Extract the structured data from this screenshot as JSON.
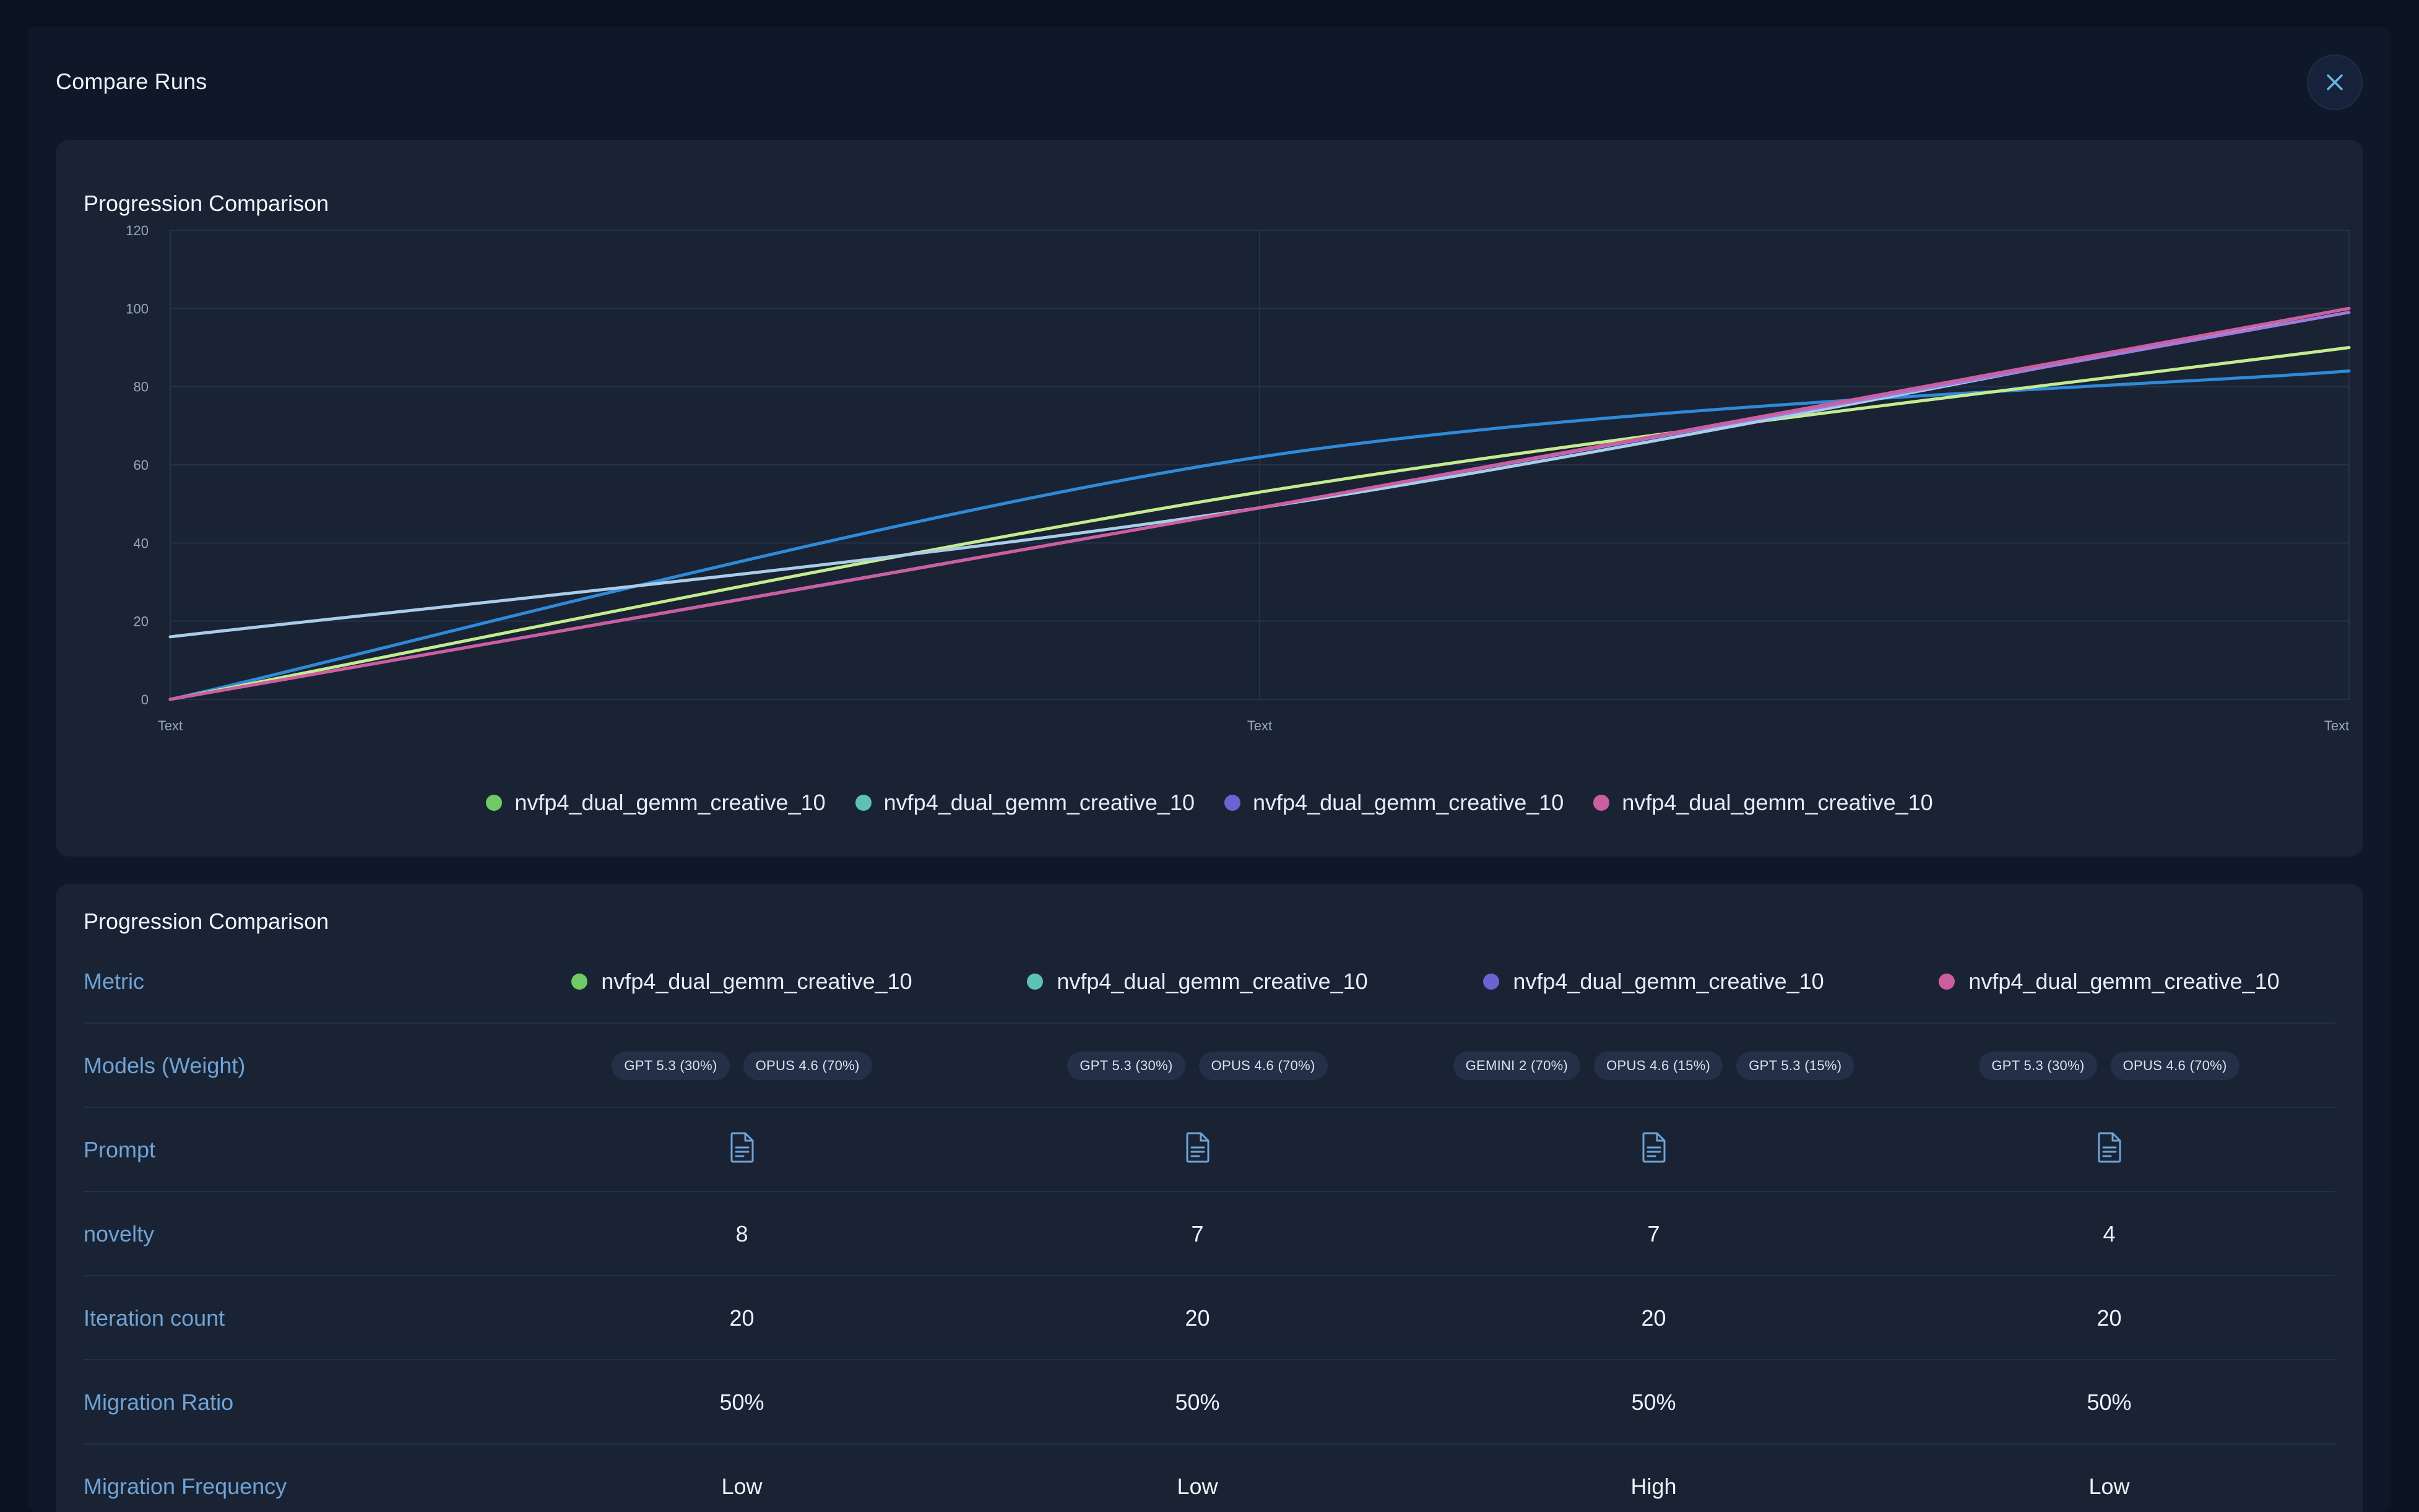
{
  "modal": {
    "title": "Compare Runs",
    "close_icon": "close-icon"
  },
  "colors": {
    "run1": "#6fca63",
    "run2": "#5ec1b8",
    "run3": "#6b63d1",
    "run4": "#cc5ea0",
    "line_blue": "#2f8ad8",
    "line_lime": "#c4ec8e",
    "line_light": "#a9cde8",
    "line_purple": "#a07ad8",
    "line_pink": "#cc5ea0"
  },
  "chart_panel": {
    "title": "Progression Comparison"
  },
  "chart_data": {
    "type": "line",
    "title": "Progression Comparison",
    "x": [
      "Text",
      "Text",
      "Text"
    ],
    "ylim": [
      0,
      120
    ],
    "yticks": [
      0,
      20,
      40,
      60,
      80,
      100,
      120
    ],
    "grid": true,
    "legend_placement": "bottom",
    "series": [
      {
        "color": "#2f8ad8",
        "values": [
          0,
          62,
          84
        ]
      },
      {
        "color": "#c4ec8e",
        "values": [
          0,
          53,
          90
        ]
      },
      {
        "color": "#a9cde8",
        "values": [
          16,
          49,
          100
        ]
      },
      {
        "color": "#a07ad8",
        "values": [
          0,
          49,
          99
        ]
      },
      {
        "color": "#cc5ea0",
        "values": [
          0,
          49,
          100
        ]
      }
    ]
  },
  "legend": [
    {
      "label": "nvfp4_dual_gemm_creative_10",
      "color": "#6fca63"
    },
    {
      "label": "nvfp4_dual_gemm_creative_10",
      "color": "#5ec1b8"
    },
    {
      "label": "nvfp4_dual_gemm_creative_10",
      "color": "#6b63d1"
    },
    {
      "label": "nvfp4_dual_gemm_creative_10",
      "color": "#cc5ea0"
    }
  ],
  "table_panel": {
    "title": "Progression Comparison",
    "metric_header": "Metric",
    "runs": [
      {
        "label": "nvfp4_dual_gemm_creative_10",
        "color": "#6fca63"
      },
      {
        "label": "nvfp4_dual_gemm_creative_10",
        "color": "#5ec1b8"
      },
      {
        "label": "nvfp4_dual_gemm_creative_10",
        "color": "#6b63d1"
      },
      {
        "label": "nvfp4_dual_gemm_creative_10",
        "color": "#cc5ea0"
      }
    ],
    "models_label": "Models (Weight)",
    "models": [
      [
        "GPT 5.3 (30%)",
        "OPUS 4.6 (70%)"
      ],
      [
        "GPT 5.3 (30%)",
        "OPUS 4.6 (70%)"
      ],
      [
        "GEMINI 2 (70%)",
        "OPUS 4.6 (15%)",
        "GPT 5.3 (15%)"
      ],
      [
        "GPT 5.3 (30%)",
        "OPUS 4.6 (70%)"
      ]
    ],
    "prompt_label": "Prompt",
    "prompt_icon": "document-icon",
    "rows": [
      {
        "label": "novelty",
        "values": [
          "8",
          "7",
          "7",
          "4"
        ]
      },
      {
        "label": "Iteration count",
        "values": [
          "20",
          "20",
          "20",
          "20"
        ]
      },
      {
        "label": "Migration Ratio",
        "values": [
          "50%",
          "50%",
          "50%",
          "50%"
        ]
      },
      {
        "label": "Migration Frequency",
        "values": [
          "Low",
          "Low",
          "High",
          "Low"
        ]
      }
    ]
  }
}
